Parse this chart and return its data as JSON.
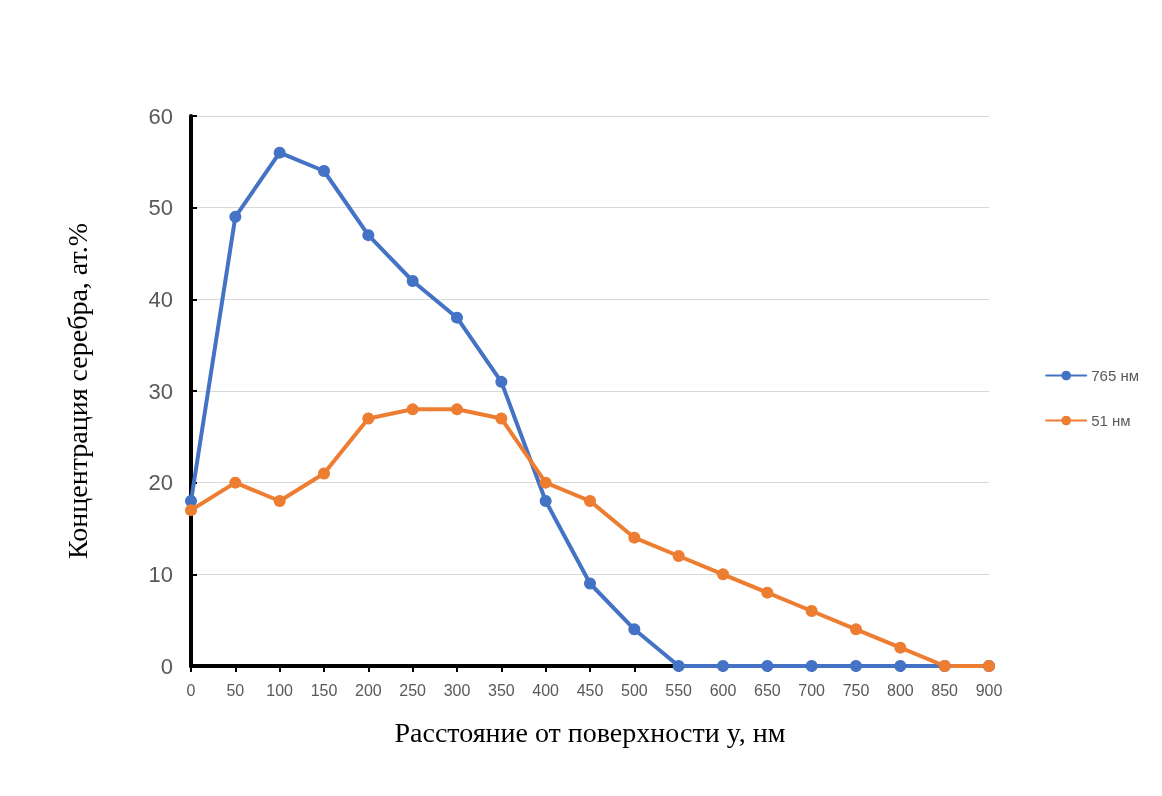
{
  "chart_data": {
    "type": "line",
    "xlabel": "Расстояние от поверхности y, нм",
    "ylabel": "Концентрация серебра, ат.%",
    "x": [
      0,
      50,
      100,
      150,
      200,
      250,
      300,
      350,
      400,
      450,
      500,
      550,
      600,
      650,
      700,
      750,
      800,
      850,
      900
    ],
    "xlim": [
      0,
      900
    ],
    "xticks": [
      0,
      50,
      100,
      150,
      200,
      250,
      300,
      350,
      400,
      450,
      500,
      550,
      600,
      650,
      700,
      750,
      800,
      850,
      900
    ],
    "ylim": [
      0,
      60
    ],
    "yticks": [
      0,
      10,
      20,
      30,
      40,
      50,
      60
    ],
    "grid": "y",
    "legend": "right",
    "marker": "circle",
    "line_style": "solid",
    "series": [
      {
        "name": "765 нм",
        "color": "#4472c4",
        "values": [
          18,
          49,
          56,
          54,
          47,
          42,
          38,
          31,
          18,
          9,
          4,
          0,
          0,
          0,
          0,
          0,
          0,
          0,
          0
        ]
      },
      {
        "name": "51 нм",
        "color": "#ed7d31",
        "values": [
          17,
          20,
          18,
          21,
          27,
          28,
          28,
          27,
          20,
          18,
          14,
          12,
          10,
          8,
          6,
          4,
          2,
          0,
          0
        ]
      }
    ]
  }
}
